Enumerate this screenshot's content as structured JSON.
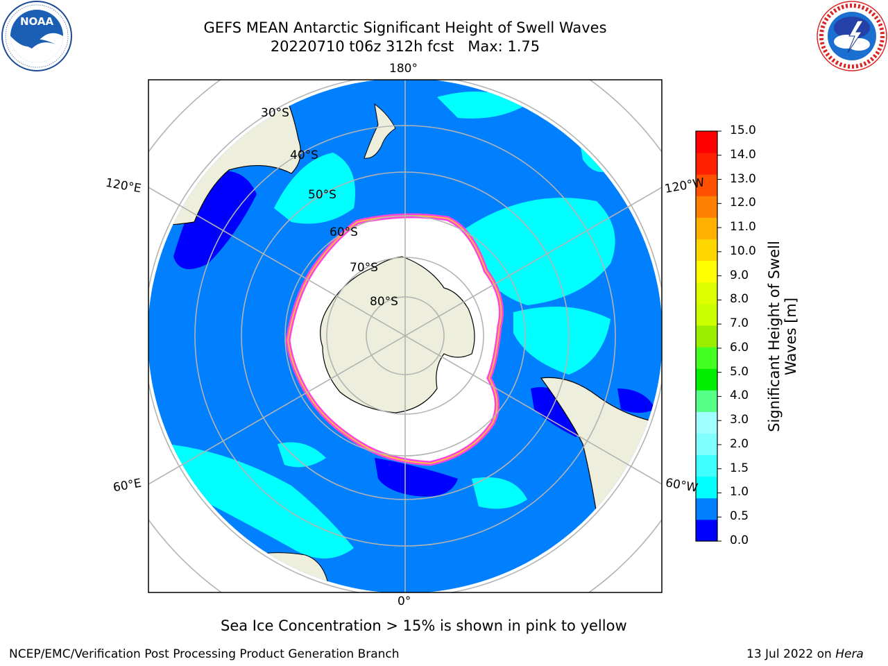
{
  "header": {
    "title_line1": "GEFS MEAN Antarctic Significant Height of Swell Waves",
    "title_line2": "20220710 t06z 312h fcst   Max: 1.75"
  },
  "logos": {
    "left": {
      "icon": "noaa-logo-icon",
      "text": "NOAA",
      "ring_text": "NATIONAL OCEANIC AND ATMOSPHERIC ADMINISTRATION · U.S. DEPARTMENT OF COMMERCE"
    },
    "right": {
      "icon": "nws-logo-icon",
      "ring_text": "NATIONAL WEATHER SERVICE"
    }
  },
  "map": {
    "projection": "south polar stereographic",
    "colors": {
      "land": "#eeeedc",
      "ocean_swell_0_5_to_1": "#0080ff",
      "ocean_swell_0_to_0_5": "#0000ff",
      "ocean_swell_1_to_1_5": "#00ffff",
      "sea_ice_min": "#ff00ff",
      "sea_ice_max": "#ffff00",
      "gridline": "#b3b3b3"
    },
    "longitude_labels": {
      "top": "180°",
      "bottom": "0°",
      "upper_left": "120°E",
      "upper_right": "120°W",
      "lower_left": "60°E",
      "lower_right": "60°W"
    },
    "latitude_labels": [
      "30°S",
      "40°S",
      "50°S",
      "60°S",
      "70°S",
      "80°S"
    ]
  },
  "colorbar": {
    "title_line1": "Significant Height of Swell",
    "title_line2": "Waves [m]",
    "ticks": [
      "0.0",
      "0.5",
      "1.0",
      "1.5",
      "2.0",
      "3.0",
      "4.0",
      "5.0",
      "6.0",
      "7.0",
      "8.0",
      "9.0",
      "10.0",
      "11.0",
      "12.0",
      "13.0",
      "14.0",
      "15.0"
    ],
    "colors": [
      "#0000ff",
      "#0080ff",
      "#00ffff",
      "#40ffff",
      "#80ffff",
      "#a0ffff",
      "#55ff88",
      "#00ee00",
      "#44ff22",
      "#99ee00",
      "#ccff00",
      "#ddff00",
      "#ffff00",
      "#ffd700",
      "#ffb000",
      "#ff8000",
      "#ff5000",
      "#ff2000",
      "#ff0000"
    ]
  },
  "note": "Sea Ice Concentration > 15% is shown in pink to yellow",
  "footer": {
    "left": "NCEP/EMC/Verification Post Processing Product Generation Branch",
    "right_prefix": "13 Jul 2022 on ",
    "right_host": "Hera"
  }
}
